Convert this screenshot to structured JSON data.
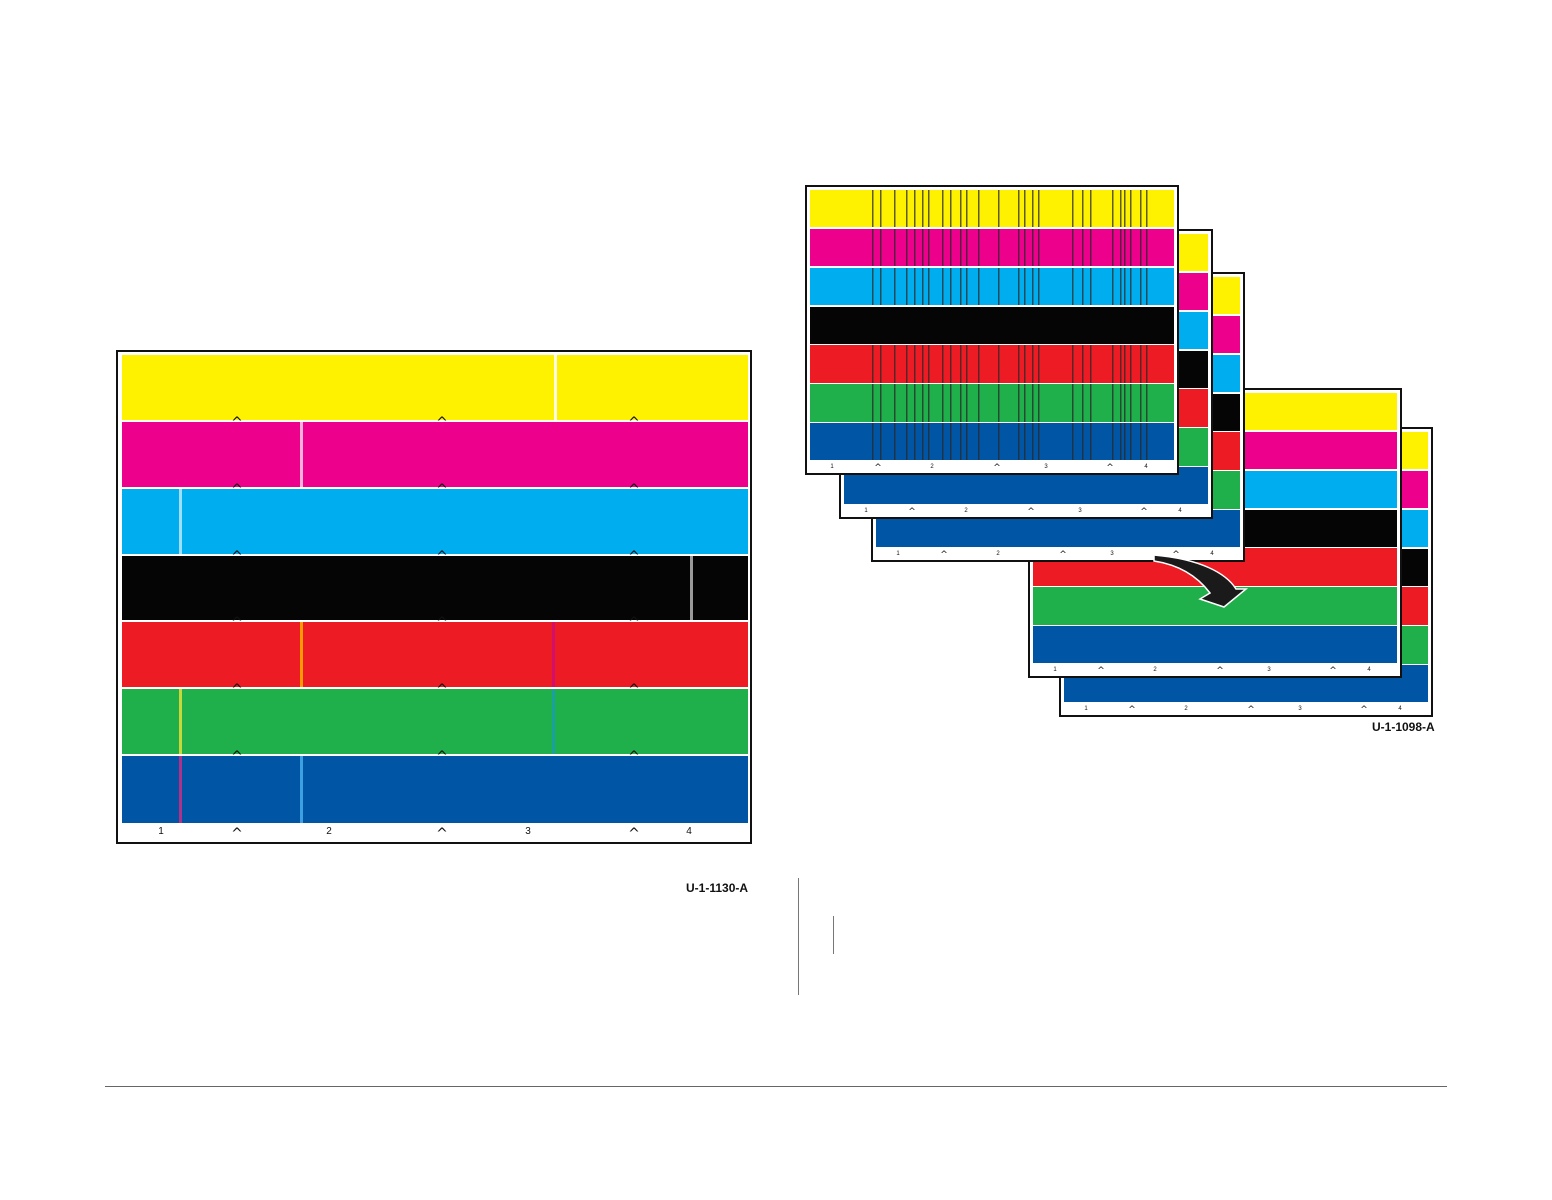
{
  "colors": {
    "yellow": "#fff200",
    "magenta": "#ec008c",
    "cyan": "#00aeef",
    "black": "#050505",
    "red": "#ed1c24",
    "green": "#1fb04b",
    "blue": "#0055a5"
  },
  "left_figure": {
    "label": "U-1-1130-A",
    "band_order": [
      "yellow",
      "magenta",
      "cyan",
      "black",
      "red",
      "green",
      "blue"
    ],
    "section_numbers": [
      "1",
      "2",
      "3",
      "4"
    ],
    "caret_glyph": "^"
  },
  "right_figure": {
    "label": "U-1-1098-A",
    "band_order": [
      "yellow",
      "magenta",
      "cyan",
      "black",
      "red",
      "green",
      "blue"
    ],
    "section_numbers": [
      "1",
      "2",
      "3",
      "4"
    ],
    "arrow_icon": "curved-arrow-icon",
    "caret_glyph": "^"
  }
}
